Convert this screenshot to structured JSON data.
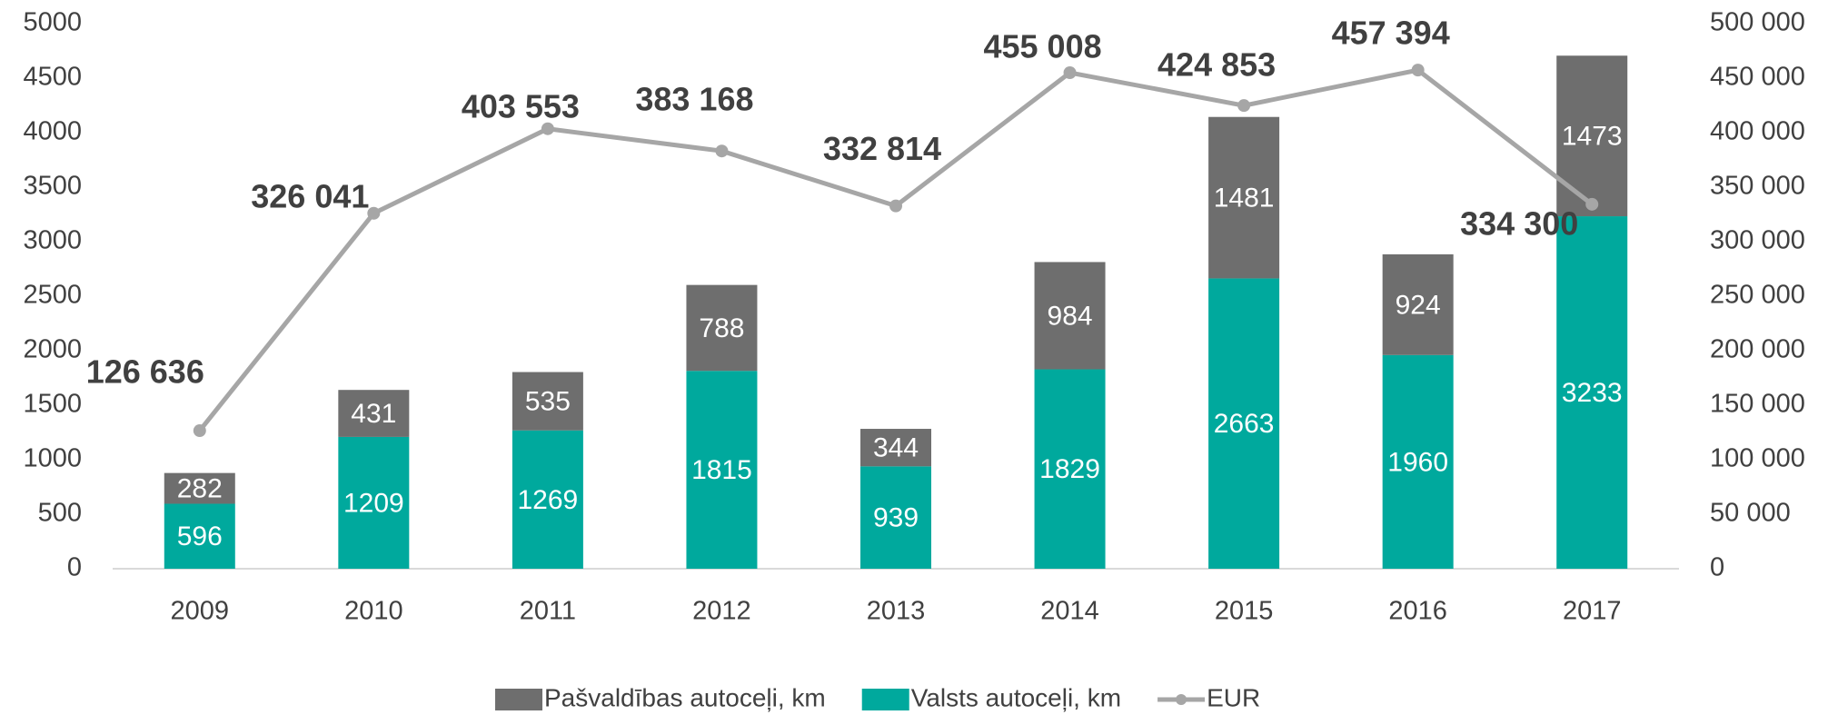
{
  "chart_data": {
    "type": "bar",
    "categories": [
      "2009",
      "2010",
      "2011",
      "2012",
      "2013",
      "2014",
      "2015",
      "2016",
      "2017"
    ],
    "series": [
      {
        "name": "Pašvaldības autoceļi, km",
        "color": "#6e6e6e",
        "type": "bar",
        "values": [
          282,
          431,
          535,
          788,
          344,
          984,
          1481,
          924,
          1473
        ]
      },
      {
        "name": "Valsts autoceļi, km",
        "color": "#00a99d",
        "type": "bar",
        "values": [
          596,
          1209,
          1269,
          1815,
          939,
          1829,
          2663,
          1960,
          3233
        ]
      },
      {
        "name": "EUR",
        "color": "#a6a6a6",
        "type": "line",
        "axis": "y2",
        "values": [
          126636,
          326041,
          403553,
          383168,
          332814,
          455008,
          424853,
          457394,
          334300
        ],
        "value_labels": [
          "126 636",
          "326 041",
          "403 553",
          "383 168",
          "332 814",
          "455 008",
          "424 853",
          "457 394",
          "334 300"
        ]
      }
    ],
    "stacked": true,
    "ylim": [
      0,
      5000
    ],
    "yticks": [
      0,
      500,
      1000,
      1500,
      2000,
      2500,
      3000,
      3500,
      4000,
      4500,
      5000
    ],
    "y2lim": [
      0,
      500000
    ],
    "y2ticks": [
      0,
      {
        "value": 50000,
        "label": "50 000"
      },
      {
        "value": 100000,
        "label": "100 000"
      },
      {
        "value": 150000,
        "label": "150 000"
      },
      {
        "value": 200000,
        "label": "200 000"
      },
      {
        "value": 250000,
        "label": "250 000"
      },
      {
        "value": 300000,
        "label": "300 000"
      },
      {
        "value": 350000,
        "label": "350 000"
      },
      {
        "value": 400000,
        "label": "400 000"
      },
      {
        "value": 450000,
        "label": "450 000"
      },
      {
        "value": 500000,
        "label": "500 000"
      }
    ],
    "grid": false,
    "legend": "bottom"
  }
}
